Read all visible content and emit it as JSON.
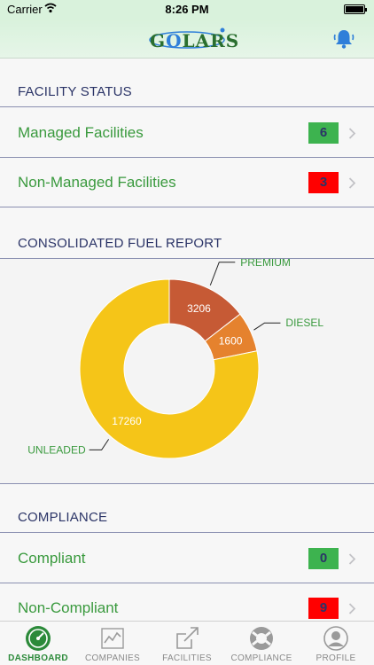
{
  "status_bar": {
    "carrier": "Carrier",
    "time": "8:26 PM"
  },
  "header": {
    "logo_text_pre": "G",
    "logo_text_o": "O",
    "logo_text_post": "LARS"
  },
  "facility_status": {
    "title": "FACILITY STATUS",
    "rows": [
      {
        "label": "Managed Facilities",
        "count": "6",
        "color": "#3db34f"
      },
      {
        "label": "Non-Managed Facilities",
        "count": "3",
        "color": "#ff0000"
      }
    ]
  },
  "fuel_report": {
    "title": "CONSOLIDATED FUEL REPORT"
  },
  "chart_data": {
    "type": "pie",
    "donut": true,
    "slices": [
      {
        "label": "PREMIUM",
        "value": 3206,
        "color": "#c65a35"
      },
      {
        "label": "DIESEL",
        "value": 1600,
        "color": "#e5822e"
      },
      {
        "label": "UNLEADED",
        "value": 17260,
        "color": "#f5c518"
      }
    ]
  },
  "compliance": {
    "title": "COMPLIANCE",
    "rows": [
      {
        "label": "Compliant",
        "count": "0",
        "color": "#3db34f"
      },
      {
        "label": "Non-Compliant",
        "count": "9",
        "color": "#ff0000"
      }
    ]
  },
  "tabs": [
    {
      "label": "DASHBOARD",
      "icon": "speedometer-icon",
      "active": true
    },
    {
      "label": "COMPANIES",
      "icon": "line-chart-icon",
      "active": false
    },
    {
      "label": "FACILITIES",
      "icon": "external-link-icon",
      "active": false
    },
    {
      "label": "COMPLIANCE",
      "icon": "support-icon",
      "active": false
    },
    {
      "label": "PROFILE",
      "icon": "user-icon",
      "active": false
    }
  ]
}
